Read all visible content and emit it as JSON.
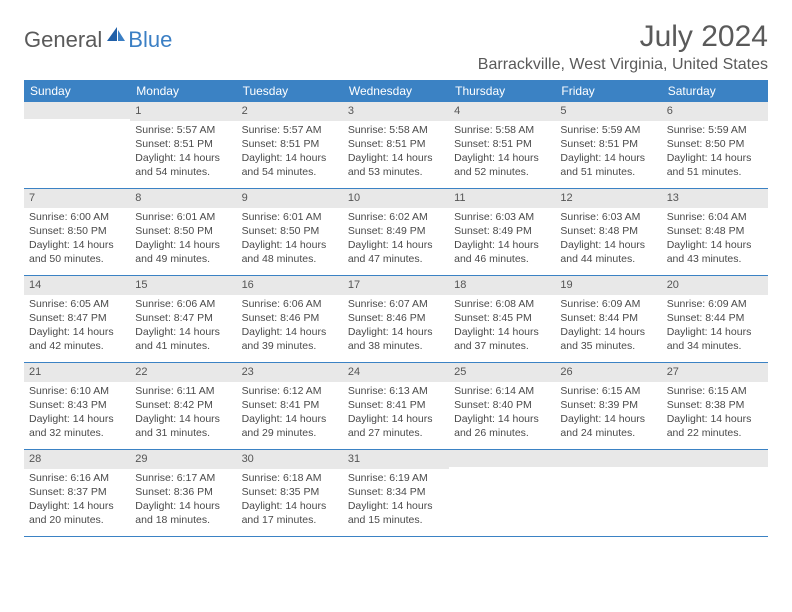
{
  "logo": {
    "general": "General",
    "blue": "Blue"
  },
  "title": "July 2024",
  "location": "Barrackville, West Virginia, United States",
  "colors": {
    "header_bg": "#3b82c4",
    "daynum_bg": "#e8e8e8",
    "text": "#5a5a5a",
    "logo_blue": "#3b7fc4"
  },
  "weekdays": [
    "Sunday",
    "Monday",
    "Tuesday",
    "Wednesday",
    "Thursday",
    "Friday",
    "Saturday"
  ],
  "weeks": [
    [
      {
        "n": "",
        "sr": "",
        "ss": "",
        "dl": ""
      },
      {
        "n": "1",
        "sr": "Sunrise: 5:57 AM",
        "ss": "Sunset: 8:51 PM",
        "dl": "Daylight: 14 hours and 54 minutes."
      },
      {
        "n": "2",
        "sr": "Sunrise: 5:57 AM",
        "ss": "Sunset: 8:51 PM",
        "dl": "Daylight: 14 hours and 54 minutes."
      },
      {
        "n": "3",
        "sr": "Sunrise: 5:58 AM",
        "ss": "Sunset: 8:51 PM",
        "dl": "Daylight: 14 hours and 53 minutes."
      },
      {
        "n": "4",
        "sr": "Sunrise: 5:58 AM",
        "ss": "Sunset: 8:51 PM",
        "dl": "Daylight: 14 hours and 52 minutes."
      },
      {
        "n": "5",
        "sr": "Sunrise: 5:59 AM",
        "ss": "Sunset: 8:51 PM",
        "dl": "Daylight: 14 hours and 51 minutes."
      },
      {
        "n": "6",
        "sr": "Sunrise: 5:59 AM",
        "ss": "Sunset: 8:50 PM",
        "dl": "Daylight: 14 hours and 51 minutes."
      }
    ],
    [
      {
        "n": "7",
        "sr": "Sunrise: 6:00 AM",
        "ss": "Sunset: 8:50 PM",
        "dl": "Daylight: 14 hours and 50 minutes."
      },
      {
        "n": "8",
        "sr": "Sunrise: 6:01 AM",
        "ss": "Sunset: 8:50 PM",
        "dl": "Daylight: 14 hours and 49 minutes."
      },
      {
        "n": "9",
        "sr": "Sunrise: 6:01 AM",
        "ss": "Sunset: 8:50 PM",
        "dl": "Daylight: 14 hours and 48 minutes."
      },
      {
        "n": "10",
        "sr": "Sunrise: 6:02 AM",
        "ss": "Sunset: 8:49 PM",
        "dl": "Daylight: 14 hours and 47 minutes."
      },
      {
        "n": "11",
        "sr": "Sunrise: 6:03 AM",
        "ss": "Sunset: 8:49 PM",
        "dl": "Daylight: 14 hours and 46 minutes."
      },
      {
        "n": "12",
        "sr": "Sunrise: 6:03 AM",
        "ss": "Sunset: 8:48 PM",
        "dl": "Daylight: 14 hours and 44 minutes."
      },
      {
        "n": "13",
        "sr": "Sunrise: 6:04 AM",
        "ss": "Sunset: 8:48 PM",
        "dl": "Daylight: 14 hours and 43 minutes."
      }
    ],
    [
      {
        "n": "14",
        "sr": "Sunrise: 6:05 AM",
        "ss": "Sunset: 8:47 PM",
        "dl": "Daylight: 14 hours and 42 minutes."
      },
      {
        "n": "15",
        "sr": "Sunrise: 6:06 AM",
        "ss": "Sunset: 8:47 PM",
        "dl": "Daylight: 14 hours and 41 minutes."
      },
      {
        "n": "16",
        "sr": "Sunrise: 6:06 AM",
        "ss": "Sunset: 8:46 PM",
        "dl": "Daylight: 14 hours and 39 minutes."
      },
      {
        "n": "17",
        "sr": "Sunrise: 6:07 AM",
        "ss": "Sunset: 8:46 PM",
        "dl": "Daylight: 14 hours and 38 minutes."
      },
      {
        "n": "18",
        "sr": "Sunrise: 6:08 AM",
        "ss": "Sunset: 8:45 PM",
        "dl": "Daylight: 14 hours and 37 minutes."
      },
      {
        "n": "19",
        "sr": "Sunrise: 6:09 AM",
        "ss": "Sunset: 8:44 PM",
        "dl": "Daylight: 14 hours and 35 minutes."
      },
      {
        "n": "20",
        "sr": "Sunrise: 6:09 AM",
        "ss": "Sunset: 8:44 PM",
        "dl": "Daylight: 14 hours and 34 minutes."
      }
    ],
    [
      {
        "n": "21",
        "sr": "Sunrise: 6:10 AM",
        "ss": "Sunset: 8:43 PM",
        "dl": "Daylight: 14 hours and 32 minutes."
      },
      {
        "n": "22",
        "sr": "Sunrise: 6:11 AM",
        "ss": "Sunset: 8:42 PM",
        "dl": "Daylight: 14 hours and 31 minutes."
      },
      {
        "n": "23",
        "sr": "Sunrise: 6:12 AM",
        "ss": "Sunset: 8:41 PM",
        "dl": "Daylight: 14 hours and 29 minutes."
      },
      {
        "n": "24",
        "sr": "Sunrise: 6:13 AM",
        "ss": "Sunset: 8:41 PM",
        "dl": "Daylight: 14 hours and 27 minutes."
      },
      {
        "n": "25",
        "sr": "Sunrise: 6:14 AM",
        "ss": "Sunset: 8:40 PM",
        "dl": "Daylight: 14 hours and 26 minutes."
      },
      {
        "n": "26",
        "sr": "Sunrise: 6:15 AM",
        "ss": "Sunset: 8:39 PM",
        "dl": "Daylight: 14 hours and 24 minutes."
      },
      {
        "n": "27",
        "sr": "Sunrise: 6:15 AM",
        "ss": "Sunset: 8:38 PM",
        "dl": "Daylight: 14 hours and 22 minutes."
      }
    ],
    [
      {
        "n": "28",
        "sr": "Sunrise: 6:16 AM",
        "ss": "Sunset: 8:37 PM",
        "dl": "Daylight: 14 hours and 20 minutes."
      },
      {
        "n": "29",
        "sr": "Sunrise: 6:17 AM",
        "ss": "Sunset: 8:36 PM",
        "dl": "Daylight: 14 hours and 18 minutes."
      },
      {
        "n": "30",
        "sr": "Sunrise: 6:18 AM",
        "ss": "Sunset: 8:35 PM",
        "dl": "Daylight: 14 hours and 17 minutes."
      },
      {
        "n": "31",
        "sr": "Sunrise: 6:19 AM",
        "ss": "Sunset: 8:34 PM",
        "dl": "Daylight: 14 hours and 15 minutes."
      },
      {
        "n": "",
        "sr": "",
        "ss": "",
        "dl": ""
      },
      {
        "n": "",
        "sr": "",
        "ss": "",
        "dl": ""
      },
      {
        "n": "",
        "sr": "",
        "ss": "",
        "dl": ""
      }
    ]
  ]
}
